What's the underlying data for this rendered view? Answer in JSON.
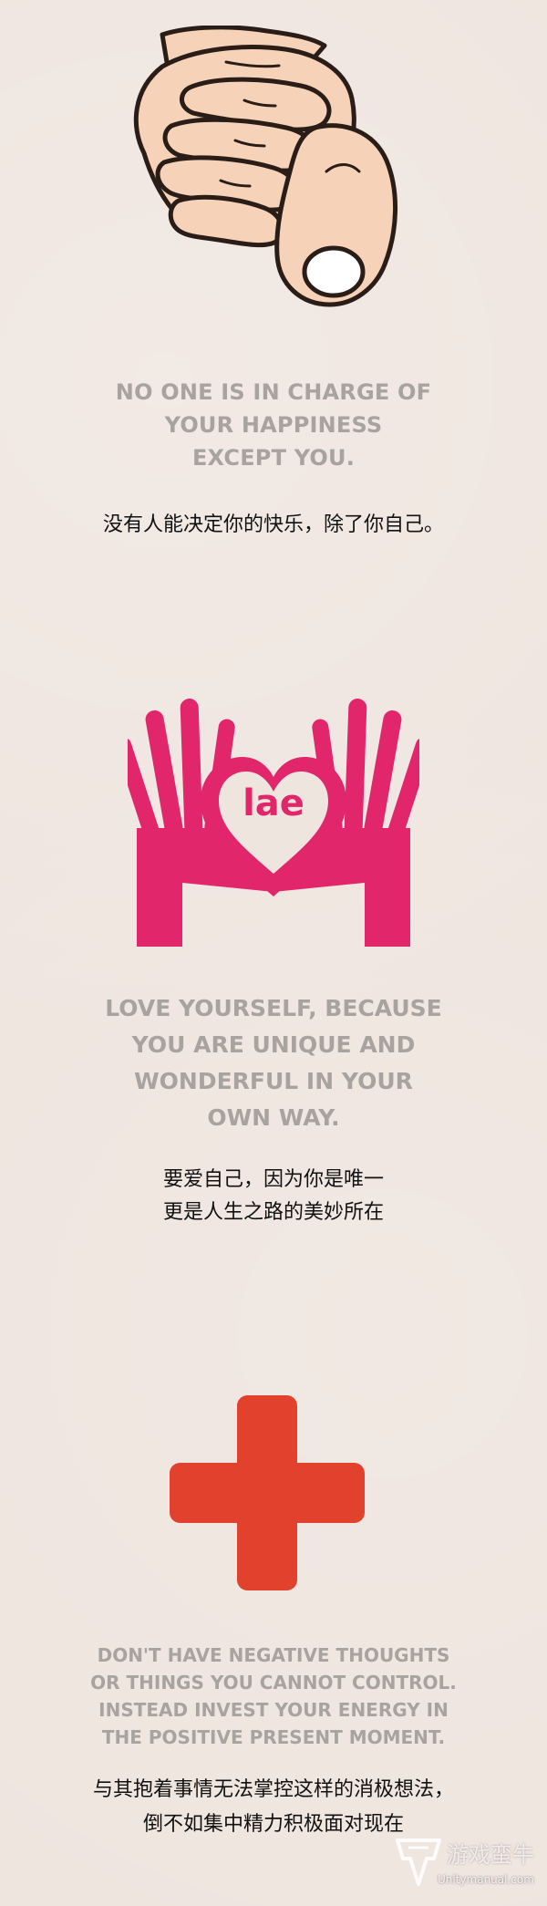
{
  "sections": [
    {
      "icon": "pointing-hand-icon",
      "english_lines": [
        "NO ONE IS IN CHARGE OF",
        "YOUR HAPPINESS",
        "EXCEPT YOU."
      ],
      "chinese_lines": [
        "没有人能决定你的快乐，除了你自己。"
      ]
    },
    {
      "icon": "heart-hands-icon",
      "heart_text": "lae",
      "english_lines": [
        "LOVE YOURSELF, BECAUSE",
        "YOU ARE UNIQUE AND",
        "WONDERFUL IN YOUR",
        "OWN WAY."
      ],
      "chinese_lines": [
        "要爱自己，因为你是唯一",
        "更是人生之路的美妙所在"
      ]
    },
    {
      "icon": "red-cross-icon",
      "english_lines": [
        "DON'T HAVE NEGATIVE THOUGHTS",
        "OR THINGS YOU CANNOT CONTROL.",
        "INSTEAD INVEST YOUR ENERGY IN",
        "THE POSITIVE PRESENT MOMENT."
      ],
      "chinese_lines": [
        "与其抱着事情无法掌控这样的消极想法，",
        "倒不如集中精力积极面对现在"
      ]
    }
  ],
  "watermark": {
    "title": "游戏蛮牛",
    "url": "Unitymanual.com"
  },
  "colors": {
    "background": "#efe5df",
    "english_text": "#a9a3a0",
    "chinese_text": "#111111",
    "heart_hands": "#e2266b",
    "cross": "#e2412d",
    "skin": "#f6d2b8",
    "outline": "#2a1d17"
  }
}
